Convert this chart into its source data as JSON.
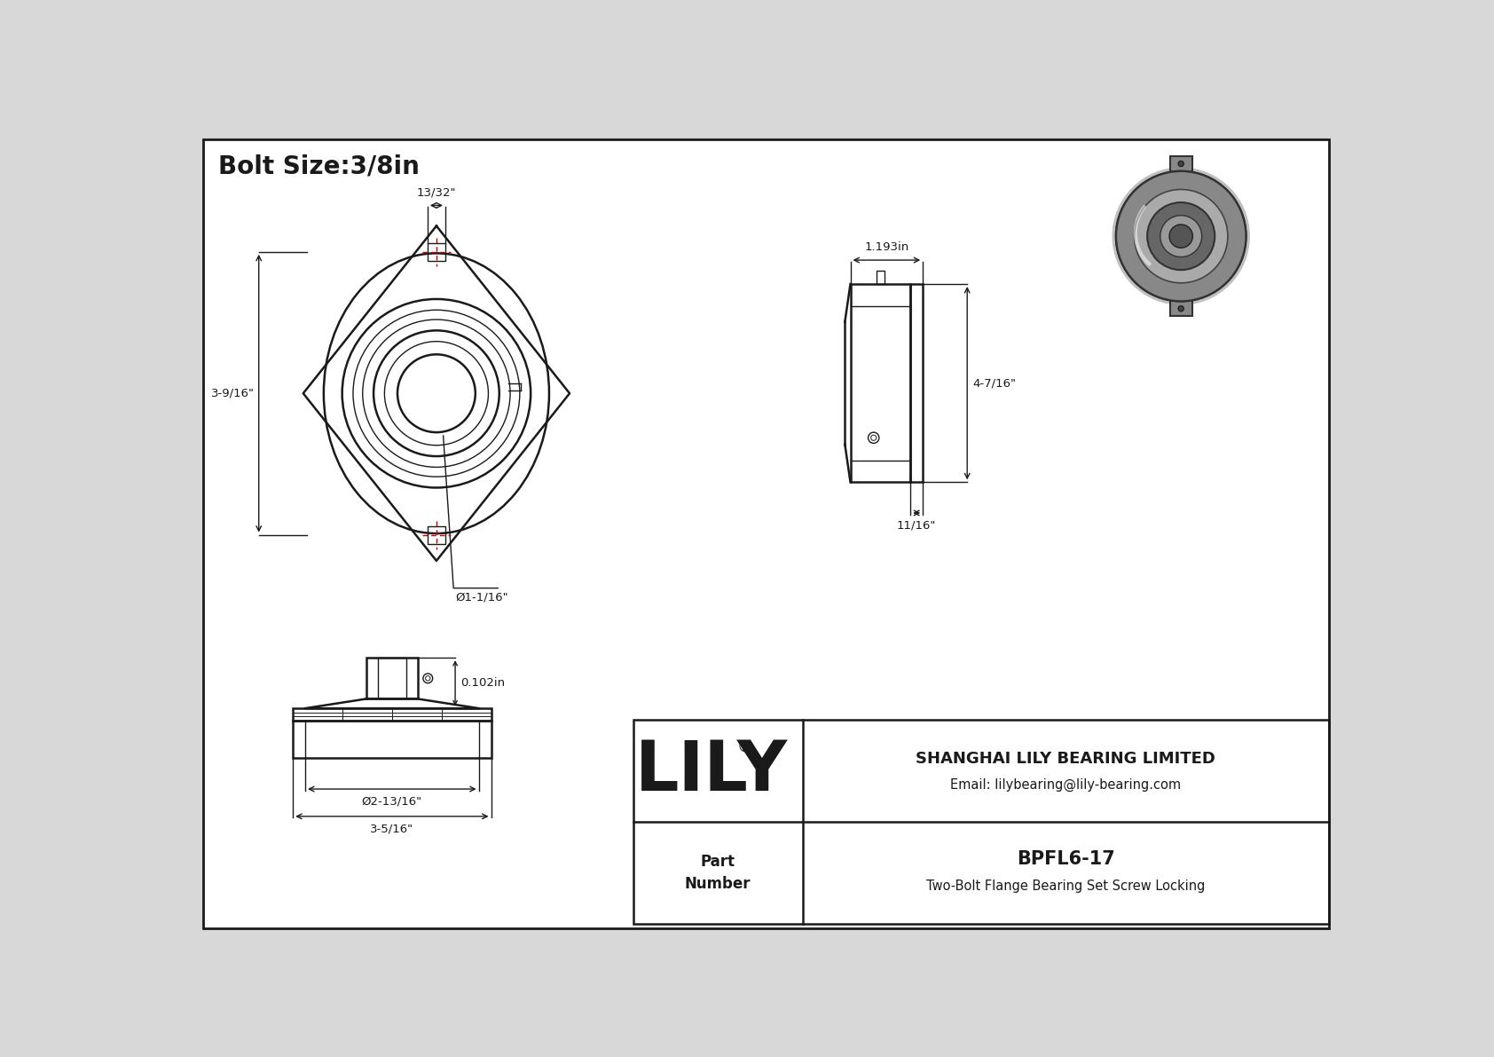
{
  "bg_color": "#d8d8d8",
  "drawing_bg": "#ffffff",
  "line_color": "#1a1a1a",
  "red_dash_color": "#cc0000",
  "title": "Bolt Size:3/8in",
  "title_fontsize": 20,
  "company": "SHANGHAI LILY BEARING LIMITED",
  "email": "Email: lilybearing@lily-bearing.com",
  "lily_text": "LILY",
  "part_label": "Part\nNumber",
  "part_number": "BPFL6-17",
  "part_desc": "Two-Bolt Flange Bearing Set Screw Locking",
  "dim_13_32": "13/32\"",
  "dim_3_9_16": "3-9/16\"",
  "dim_1_1_16": "Ø1-1/16\"",
  "dim_1_193": "1.193in",
  "dim_4_7_16": "4-7/16\"",
  "dim_11_16": "11/16\"",
  "dim_0102": "0.102in",
  "dim_2_13_16": "Ø2-13/16\"",
  "dim_3_5_16": "3-5/16\""
}
